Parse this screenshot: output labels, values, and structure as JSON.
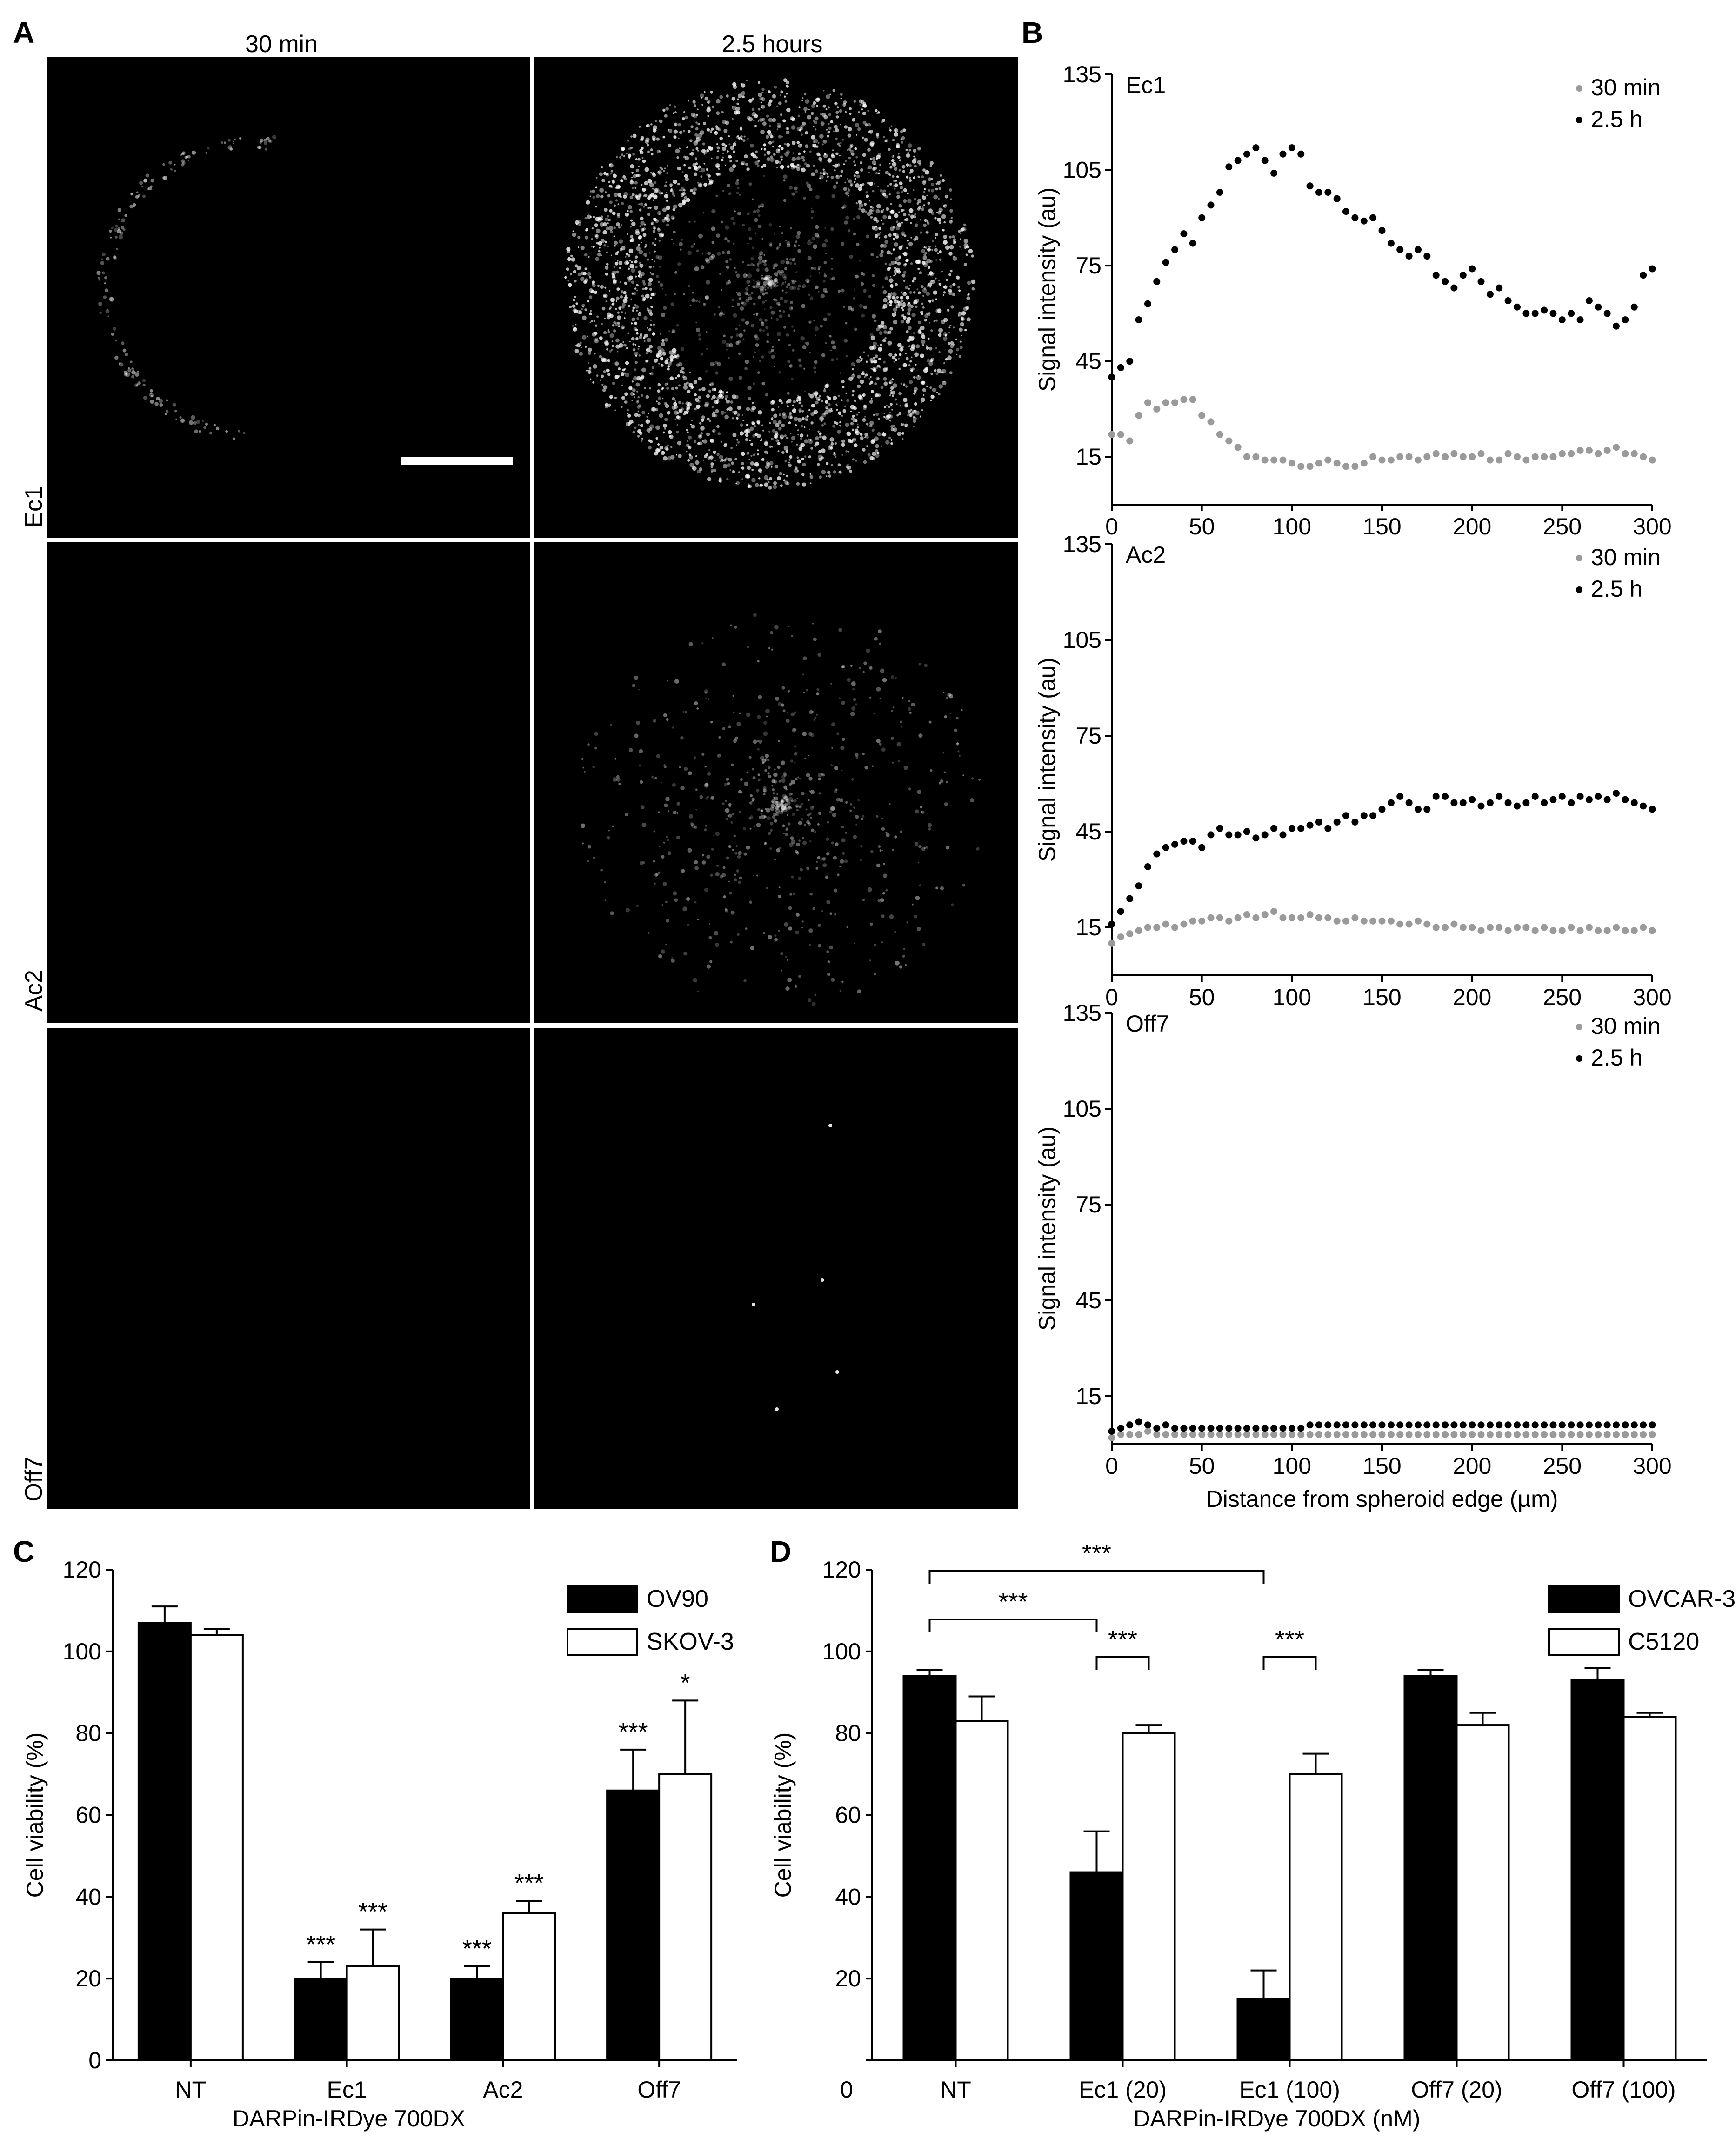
{
  "panels": {
    "a": {
      "letter": "A",
      "col_labels": [
        "30 min",
        "2.5 hours"
      ],
      "row_labels": [
        "Ec1",
        "Ac2",
        "Off7"
      ]
    },
    "b": {
      "letter": "B"
    },
    "c": {
      "letter": "C"
    },
    "d": {
      "letter": "D"
    }
  },
  "colors": {
    "black_series": "#000000",
    "gray_series": "#9a9a9a",
    "bar_black": "#000000",
    "bar_white": "#ffffff"
  },
  "chart_data": [
    {
      "type": "scatter",
      "label": "Ec1",
      "xlabel": "",
      "ylabel": "Signal intensity (au)",
      "xlim": [
        0,
        300
      ],
      "ylim": [
        0,
        135
      ],
      "yticks": [
        15,
        45,
        75,
        105,
        135
      ],
      "xticks": [
        0,
        50,
        100,
        150,
        200,
        250,
        300
      ],
      "legend": "top-right",
      "series": [
        {
          "name": "30 min",
          "color": "#9a9a9a",
          "x": [
            0,
            5,
            10,
            15,
            20,
            25,
            30,
            35,
            40,
            45,
            50,
            55,
            60,
            65,
            70,
            75,
            80,
            85,
            90,
            95,
            100,
            105,
            110,
            115,
            120,
            125,
            130,
            135,
            140,
            145,
            150,
            155,
            160,
            165,
            170,
            175,
            180,
            185,
            190,
            195,
            200,
            205,
            210,
            215,
            220,
            225,
            230,
            235,
            240,
            245,
            250,
            255,
            260,
            265,
            270,
            275,
            280,
            285,
            290,
            295,
            300
          ],
          "y": [
            22,
            22,
            20,
            28,
            32,
            30,
            32,
            32,
            33,
            33,
            28,
            26,
            22,
            20,
            18,
            15,
            15,
            14,
            14,
            14,
            13,
            12,
            12,
            13,
            14,
            13,
            12,
            12,
            13,
            15,
            14,
            14,
            15,
            15,
            14,
            15,
            16,
            15,
            16,
            15,
            15,
            16,
            14,
            14,
            16,
            15,
            14,
            15,
            15,
            15,
            16,
            16,
            17,
            17,
            16,
            17,
            18,
            16,
            16,
            15,
            14
          ]
        },
        {
          "name": "2.5 h",
          "color": "#000000",
          "x": [
            0,
            5,
            10,
            15,
            20,
            25,
            30,
            35,
            40,
            45,
            50,
            55,
            60,
            65,
            70,
            75,
            80,
            85,
            90,
            95,
            100,
            105,
            110,
            115,
            120,
            125,
            130,
            135,
            140,
            145,
            150,
            155,
            160,
            165,
            170,
            175,
            180,
            185,
            190,
            195,
            200,
            205,
            210,
            215,
            220,
            225,
            230,
            235,
            240,
            245,
            250,
            255,
            260,
            265,
            270,
            275,
            280,
            285,
            290,
            295,
            300
          ],
          "y": [
            40,
            43,
            45,
            58,
            63,
            70,
            76,
            80,
            85,
            82,
            90,
            94,
            98,
            106,
            108,
            110,
            112,
            108,
            104,
            110,
            112,
            110,
            100,
            98,
            98,
            96,
            92,
            90,
            89,
            90,
            86,
            82,
            80,
            78,
            80,
            78,
            72,
            70,
            68,
            72,
            74,
            70,
            66,
            68,
            64,
            62,
            60,
            60,
            61,
            60,
            58,
            60,
            58,
            64,
            62,
            60,
            56,
            58,
            62,
            72,
            74
          ]
        }
      ]
    },
    {
      "type": "scatter",
      "label": "Ac2",
      "xlabel": "",
      "ylabel": "Signal intensity (au)",
      "xlim": [
        0,
        300
      ],
      "ylim": [
        0,
        135
      ],
      "yticks": [
        15,
        45,
        75,
        105,
        135
      ],
      "xticks": [
        0,
        50,
        100,
        150,
        200,
        250,
        300
      ],
      "legend": "top-right",
      "series": [
        {
          "name": "30 min",
          "color": "#9a9a9a",
          "x": [
            0,
            5,
            10,
            15,
            20,
            25,
            30,
            35,
            40,
            45,
            50,
            55,
            60,
            65,
            70,
            75,
            80,
            85,
            90,
            95,
            100,
            105,
            110,
            115,
            120,
            125,
            130,
            135,
            140,
            145,
            150,
            155,
            160,
            165,
            170,
            175,
            180,
            185,
            190,
            195,
            200,
            205,
            210,
            215,
            220,
            225,
            230,
            235,
            240,
            245,
            250,
            255,
            260,
            265,
            270,
            275,
            280,
            285,
            290,
            295,
            300
          ],
          "y": [
            10,
            12,
            13,
            14,
            15,
            15,
            16,
            15,
            16,
            17,
            17,
            18,
            18,
            17,
            18,
            19,
            18,
            19,
            20,
            18,
            18,
            18,
            19,
            18,
            18,
            17,
            17,
            18,
            17,
            17,
            17,
            17,
            16,
            16,
            17,
            16,
            15,
            15,
            16,
            15,
            15,
            14,
            15,
            15,
            14,
            15,
            15,
            14,
            15,
            14,
            14,
            15,
            14,
            15,
            14,
            14,
            15,
            14,
            14,
            15,
            14
          ]
        },
        {
          "name": "2.5 h",
          "color": "#000000",
          "x": [
            0,
            5,
            10,
            15,
            20,
            25,
            30,
            35,
            40,
            45,
            50,
            55,
            60,
            65,
            70,
            75,
            80,
            85,
            90,
            95,
            100,
            105,
            110,
            115,
            120,
            125,
            130,
            135,
            140,
            145,
            150,
            155,
            160,
            165,
            170,
            175,
            180,
            185,
            190,
            195,
            200,
            205,
            210,
            215,
            220,
            225,
            230,
            235,
            240,
            245,
            250,
            255,
            260,
            265,
            270,
            275,
            280,
            285,
            290,
            295,
            300
          ],
          "y": [
            16,
            20,
            24,
            28,
            34,
            38,
            40,
            41,
            42,
            42,
            40,
            44,
            46,
            44,
            44,
            45,
            43,
            44,
            46,
            44,
            46,
            46,
            47,
            48,
            46,
            48,
            50,
            48,
            50,
            50,
            52,
            54,
            56,
            54,
            52,
            52,
            56,
            56,
            54,
            54,
            55,
            53,
            54,
            56,
            54,
            53,
            54,
            56,
            54,
            55,
            56,
            54,
            56,
            55,
            56,
            55,
            57,
            55,
            54,
            53,
            52
          ]
        }
      ]
    },
    {
      "type": "scatter",
      "label": "Off7",
      "xlabel": "Distance from spheroid edge (µm)",
      "ylabel": "Signal intensity (au)",
      "xlim": [
        0,
        300
      ],
      "ylim": [
        0,
        135
      ],
      "yticks": [
        15,
        45,
        75,
        105,
        135
      ],
      "xticks": [
        0,
        50,
        100,
        150,
        200,
        250,
        300
      ],
      "legend": "top-right",
      "series": [
        {
          "name": "30 min",
          "color": "#9a9a9a",
          "x": [
            0,
            5,
            10,
            15,
            20,
            25,
            30,
            35,
            40,
            45,
            50,
            55,
            60,
            65,
            70,
            75,
            80,
            85,
            90,
            95,
            100,
            105,
            110,
            115,
            120,
            125,
            130,
            135,
            140,
            145,
            150,
            155,
            160,
            165,
            170,
            175,
            180,
            185,
            190,
            195,
            200,
            205,
            210,
            215,
            220,
            225,
            230,
            235,
            240,
            245,
            250,
            255,
            260,
            265,
            270,
            275,
            280,
            285,
            290,
            295,
            300
          ],
          "y": [
            2,
            3,
            3,
            3,
            4,
            3,
            3,
            3,
            3,
            3,
            3,
            3,
            3,
            3,
            3,
            3,
            3,
            3,
            3,
            3,
            3,
            3,
            3,
            3,
            3,
            3,
            3,
            3,
            3,
            3,
            3,
            3,
            3,
            3,
            3,
            3,
            3,
            3,
            3,
            3,
            3,
            3,
            3,
            3,
            3,
            3,
            3,
            3,
            3,
            3,
            3,
            3,
            3,
            3,
            3,
            3,
            3,
            3,
            3,
            3,
            3
          ]
        },
        {
          "name": "2.5 h",
          "color": "#000000",
          "x": [
            0,
            5,
            10,
            15,
            20,
            25,
            30,
            35,
            40,
            45,
            50,
            55,
            60,
            65,
            70,
            75,
            80,
            85,
            90,
            95,
            100,
            105,
            110,
            115,
            120,
            125,
            130,
            135,
            140,
            145,
            150,
            155,
            160,
            165,
            170,
            175,
            180,
            185,
            190,
            195,
            200,
            205,
            210,
            215,
            220,
            225,
            230,
            235,
            240,
            245,
            250,
            255,
            260,
            265,
            270,
            275,
            280,
            285,
            290,
            295,
            300
          ],
          "y": [
            4,
            5,
            6,
            7,
            6,
            5,
            6,
            5,
            5,
            5,
            5,
            5,
            5,
            5,
            5,
            5,
            5,
            5,
            5,
            5,
            5,
            5,
            6,
            6,
            6,
            6,
            6,
            6,
            6,
            6,
            6,
            6,
            6,
            6,
            6,
            6,
            6,
            6,
            6,
            6,
            6,
            6,
            6,
            6,
            6,
            6,
            6,
            6,
            6,
            6,
            6,
            6,
            6,
            6,
            6,
            6,
            6,
            6,
            6,
            6,
            6
          ]
        }
      ]
    },
    {
      "type": "bar",
      "xlabel": "DARPin-IRDye 700DX",
      "ylabel": "Cell viability (%)",
      "ylim": [
        0,
        120
      ],
      "yticks": [
        0,
        20,
        40,
        60,
        80,
        100,
        120
      ],
      "categories": [
        "NT",
        "Ec1",
        "Ac2",
        "Off7"
      ],
      "legend": "top-right",
      "series": [
        {
          "name": "OV90",
          "fill": "#000000",
          "values": [
            107,
            20,
            20,
            66
          ],
          "errors": [
            4,
            4,
            3,
            10
          ],
          "annotations": [
            "",
            "***",
            "***",
            "***"
          ]
        },
        {
          "name": "SKOV-3",
          "fill": "#ffffff",
          "values": [
            104,
            23,
            36,
            70
          ],
          "errors": [
            1.5,
            9,
            3,
            18
          ],
          "annotations": [
            "",
            "***",
            "***",
            "*"
          ]
        }
      ]
    },
    {
      "type": "bar",
      "xlabel": "DARPin-IRDye 700DX (nM)",
      "ylabel": "Cell viability (%)",
      "ylim": [
        0,
        120
      ],
      "yticks": [
        0,
        20,
        40,
        60,
        80,
        100,
        120
      ],
      "yticklabel_zero_outside": "0",
      "categories": [
        "NT",
        "Ec1 (20)",
        "Ec1 (100)",
        "Off7 (20)",
        "Off7 (100)"
      ],
      "legend": "top-right",
      "series": [
        {
          "name": "OVCAR-3",
          "fill": "#000000",
          "values": [
            94,
            46,
            15,
            94,
            93
          ],
          "errors": [
            1.5,
            10,
            7,
            1.5,
            3
          ]
        },
        {
          "name": "C5120",
          "fill": "#ffffff",
          "values": [
            83,
            80,
            70,
            82,
            84
          ],
          "errors": [
            6,
            2,
            5,
            3,
            1
          ]
        }
      ],
      "brackets": [
        {
          "from": 0,
          "to": 1,
          "label": "***"
        },
        {
          "from": 0,
          "to": 2,
          "label": "***"
        },
        {
          "from": 1,
          "to": 1,
          "label": "***"
        },
        {
          "from": 2,
          "to": 2,
          "label": "***"
        }
      ]
    }
  ]
}
